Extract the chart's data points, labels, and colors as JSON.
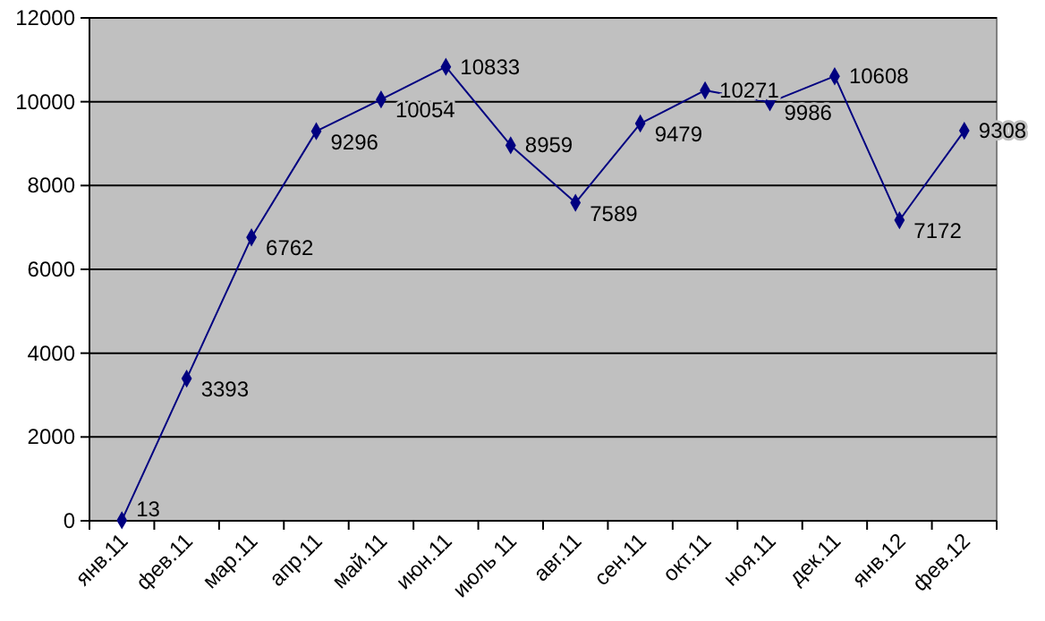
{
  "chart_data": {
    "type": "line",
    "categories": [
      "янв.11",
      "фев.11",
      "мар.11",
      "апр.11",
      "май.11",
      "июн.11",
      "июль 11",
      "авг.11",
      "сен.11",
      "окт.11",
      "ноя.11",
      "дек.11",
      "янв.12",
      "фев.12"
    ],
    "values": [
      13,
      3393,
      6762,
      9296,
      10054,
      10833,
      8959,
      7589,
      9479,
      10271,
      9986,
      10608,
      7172,
      9308
    ],
    "color": "#000080",
    "ylim": [
      0,
      12000
    ],
    "yticks": [
      0,
      2000,
      4000,
      6000,
      8000,
      10000,
      12000
    ],
    "grid": "y",
    "marker": "diamond",
    "line_style": "solid",
    "data_labels": true
  }
}
